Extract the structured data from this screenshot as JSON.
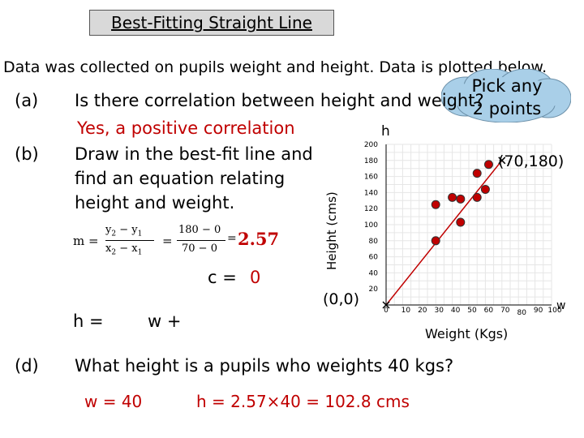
{
  "title": "Best-Fitting Straight Line",
  "intro": "Data was collected on pupils weight and height. Data is plotted below.",
  "cloud": {
    "line1": "Pick any",
    "line2": "2 points"
  },
  "parts": {
    "a_label": "(a)",
    "a_question": "Is there correlation between height and weight?",
    "a_answer": "Yes, a positive correlation",
    "b_label": "(b)",
    "b_line1": "Draw in the best-fit line and",
    "b_line2": "find an equation relating",
    "b_line3": "height and weight.",
    "c_text": "c =",
    "c_value": "0",
    "h_text": "h =",
    "w_text": "w +",
    "d_label": "(d)",
    "d_question": "What height is a pupils who weights 40 kgs?",
    "d_w": "w = 40",
    "d_h": "h = 2.57×40 = 102.8 cms"
  },
  "gradient": {
    "m": "m =",
    "y2": "y",
    "y1": "y",
    "x2": "x",
    "x1": "x",
    "sub2": "2",
    "sub1": "1",
    "num": "180 − 0",
    "den": "70 − 0",
    "eq": "=",
    "minus": "−",
    "result": "2.57"
  },
  "point_labels": {
    "p1": "(0,0)",
    "p2": "(70,180)"
  },
  "colors": {
    "accent": "#c00000",
    "points": "#c00000",
    "line": "#c00000",
    "cloud": "#a9cfe8"
  },
  "chart_data": {
    "type": "scatter",
    "xlabel": "Weight (Kgs)",
    "ylabel": "Height (cms)",
    "yaxis_letter": "h",
    "xaxis_letter": "w",
    "xticks": [
      0,
      10,
      20,
      30,
      40,
      50,
      60,
      70,
      80,
      90,
      100
    ],
    "yticks": [
      20,
      40,
      60,
      80,
      100,
      120,
      140,
      160,
      180,
      200
    ],
    "xlim": [
      0,
      100
    ],
    "ylim": [
      0,
      200
    ],
    "points": [
      {
        "x": 30,
        "y": 80
      },
      {
        "x": 30,
        "y": 125
      },
      {
        "x": 40,
        "y": 134
      },
      {
        "x": 45,
        "y": 103
      },
      {
        "x": 45,
        "y": 132
      },
      {
        "x": 55,
        "y": 134
      },
      {
        "x": 55,
        "y": 164
      },
      {
        "x": 60,
        "y": 144
      },
      {
        "x": 62,
        "y": 175
      }
    ],
    "best_fit": [
      [
        0,
        0
      ],
      [
        70,
        180
      ]
    ],
    "grid": true
  }
}
